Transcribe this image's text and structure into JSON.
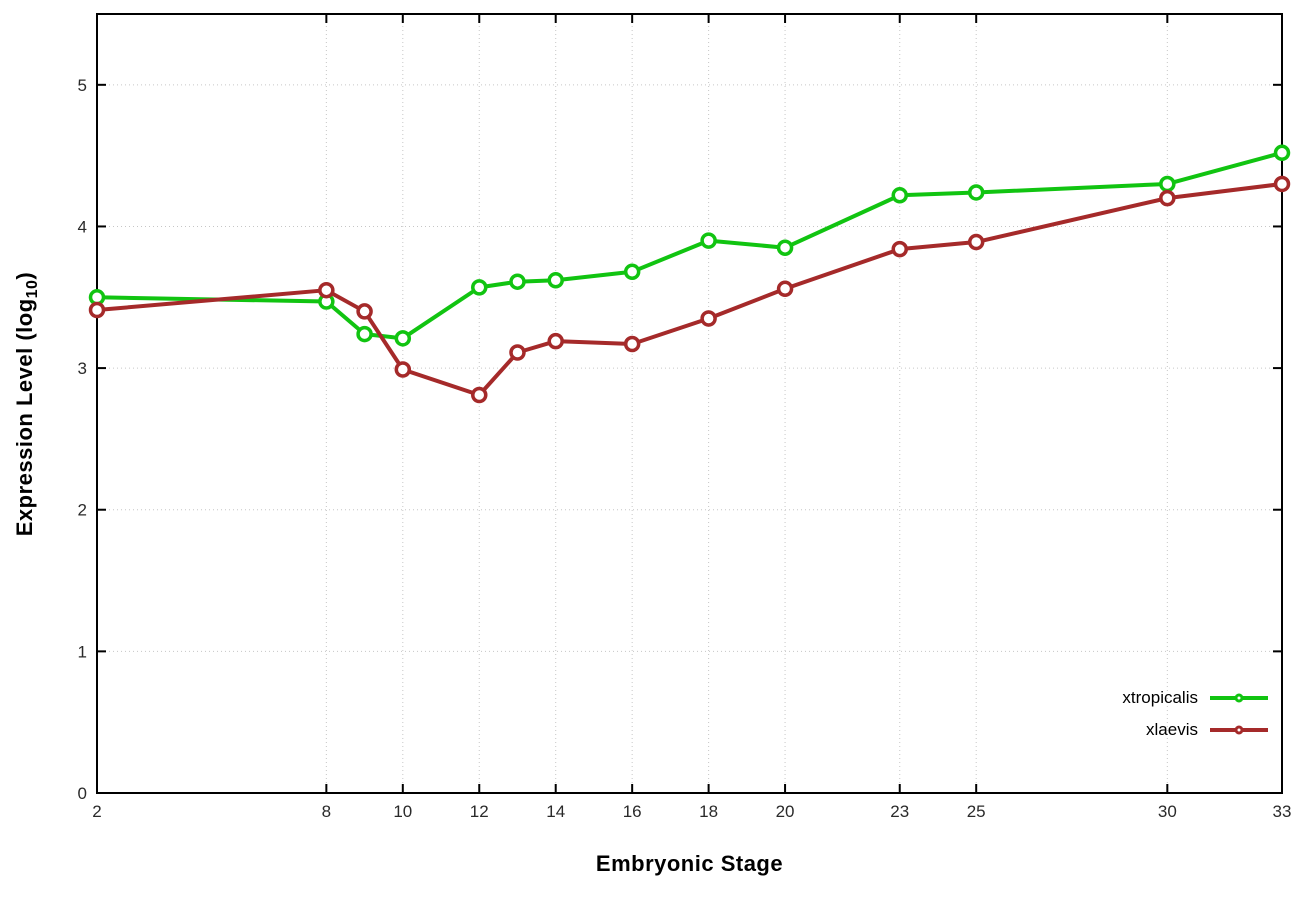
{
  "chart_data": {
    "type": "line",
    "title": "",
    "xlabel": "Embryonic Stage",
    "ylabel_prefix": "Expression Level (log",
    "ylabel_sub": "10",
    "ylabel_suffix": ")",
    "x": [
      2,
      8,
      9,
      10,
      12,
      13,
      14,
      16,
      18,
      20,
      23,
      25,
      30,
      33
    ],
    "series": [
      {
        "name": "xtropicalis",
        "color": "#11c411",
        "values": [
          3.5,
          3.47,
          3.24,
          3.21,
          3.57,
          3.61,
          3.62,
          3.68,
          3.9,
          3.85,
          4.22,
          4.24,
          4.3,
          4.52
        ]
      },
      {
        "name": "xlaevis",
        "color": "#a52a2a",
        "values": [
          3.41,
          3.55,
          3.4,
          2.99,
          2.81,
          3.11,
          3.19,
          3.17,
          3.35,
          3.56,
          3.84,
          3.89,
          4.2,
          4.3
        ]
      }
    ],
    "xticks": [
      2,
      8,
      10,
      12,
      14,
      16,
      18,
      20,
      23,
      25,
      30,
      33
    ],
    "yticks": [
      0,
      1,
      2,
      3,
      4,
      5
    ],
    "xlim": [
      2,
      33
    ],
    "ylim": [
      0,
      5.5
    ],
    "grid": true,
    "legend_position": "bottom-right-inside",
    "axis_color": "#000000",
    "grid_color": "#c6c6c6",
    "tick_label_color": "#2a2a2a",
    "background": "#ffffff",
    "marker": "open-circle"
  }
}
